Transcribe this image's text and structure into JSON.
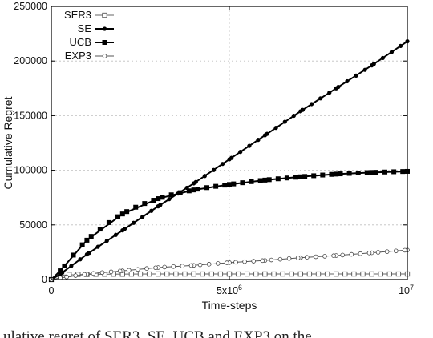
{
  "chart_data": {
    "type": "line",
    "xlabel": "Time-steps",
    "ylabel": "Cumulative Regret",
    "xlim": [
      0,
      10000000
    ],
    "ylim": [
      0,
      250000
    ],
    "x_ticks": [
      {
        "value": 0,
        "label": "0"
      },
      {
        "value": 5000000,
        "label": "5x10",
        "sup": "6"
      },
      {
        "value": 10000000,
        "label": "10",
        "sup": "7"
      }
    ],
    "y_ticks": [
      {
        "value": 0,
        "label": "0"
      },
      {
        "value": 50000,
        "label": "50000"
      },
      {
        "value": 100000,
        "label": "100000"
      },
      {
        "value": 150000,
        "label": "150000"
      },
      {
        "value": 200000,
        "label": "200000"
      },
      {
        "value": 250000,
        "label": "250000"
      }
    ],
    "grid": true,
    "legend_position": "top-left",
    "x": [
      0,
      250000,
      1000000,
      2000000,
      3000000,
      4000000,
      5000000,
      6000000,
      7000000,
      8000000,
      9000000,
      10000000
    ],
    "series": [
      {
        "name": "SER3",
        "marker": "open-square",
        "values": [
          0,
          4000,
          4800,
          5000,
          5100,
          5100,
          5100,
          5100,
          5100,
          5100,
          5100,
          5100
        ]
      },
      {
        "name": "SE",
        "marker": "filled-circle",
        "values": [
          0,
          5000,
          23000,
          45000,
          67000,
          88000,
          110000,
          132000,
          154000,
          175000,
          196000,
          218000
        ]
      },
      {
        "name": "UCB",
        "marker": "filled-square",
        "values": [
          0,
          8000,
          36000,
          60000,
          74000,
          82000,
          87000,
          91000,
          94000,
          96500,
          98000,
          99000
        ]
      },
      {
        "name": "EXP3",
        "marker": "open-circle",
        "values": [
          0,
          1500,
          5000,
          8000,
          11000,
          13000,
          15500,
          17500,
          20000,
          22000,
          24500,
          27000
        ]
      }
    ]
  },
  "caption": "ulative regret of SER3, SE, UCB and EXP3 on the"
}
